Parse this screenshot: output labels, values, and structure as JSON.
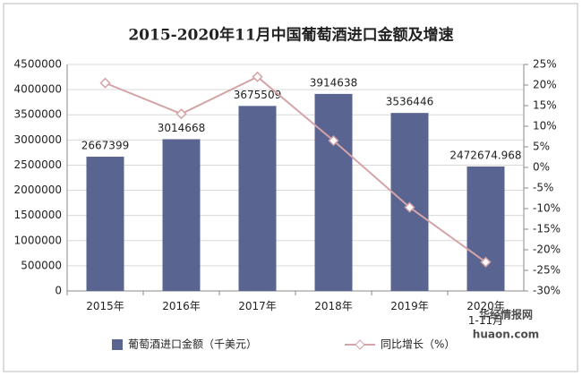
{
  "chart_data": {
    "type": "bar_line",
    "title": "2015-2020年11月中国葡萄酒进口金额及增速",
    "categories": [
      "2015年",
      "2016年",
      "2017年",
      "2018年",
      "2019年",
      "2020年\n1-11月"
    ],
    "series": [
      {
        "name": "葡萄酒进口金额（千美元）",
        "color": "#5a6491",
        "type": "bar",
        "values": [
          2667399,
          3014668,
          3675509,
          3914638,
          3536446,
          2472674.968
        ]
      },
      {
        "name": "同比增长（%）",
        "color": "#d3a4a8",
        "type": "line",
        "axis": "y2",
        "values": [
          20.5,
          13,
          22,
          6.5,
          -9.7,
          -23
        ]
      }
    ],
    "ylim": [
      0,
      4500000
    ],
    "yticks": [
      0,
      500000,
      1000000,
      1500000,
      2000000,
      2500000,
      3000000,
      3500000,
      4000000,
      4500000
    ],
    "y2lim": [
      -30,
      25
    ],
    "y2ticks": [
      {
        "value": 25,
        "label": "25%"
      },
      {
        "value": 20,
        "label": "20%"
      },
      {
        "value": 15,
        "label": "15%"
      },
      {
        "value": 10,
        "label": "10%"
      },
      {
        "value": 5,
        "label": "5%"
      },
      {
        "value": 0,
        "label": "0%"
      },
      {
        "value": -5,
        "label": "-5%"
      },
      {
        "value": -10,
        "label": "-10%"
      },
      {
        "value": -15,
        "label": "-15%"
      },
      {
        "value": -20,
        "label": "-20%"
      },
      {
        "value": -25,
        "label": "-25%"
      },
      {
        "value": -30,
        "label": "-30%"
      }
    ],
    "grid": true,
    "legend": "bottom",
    "watermark": [
      "华经情报网",
      "huaon.com"
    ]
  }
}
